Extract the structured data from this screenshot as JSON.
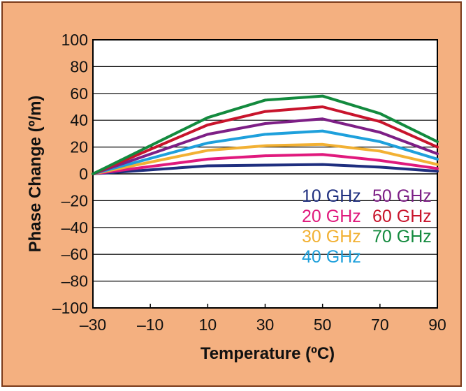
{
  "chart_data": {
    "type": "line",
    "xlabel": "Temperature (ºC)",
    "ylabel": "Phase Change (º/m)",
    "xlim": [
      -30,
      90
    ],
    "ylim": [
      -100,
      100
    ],
    "x_ticks": [
      "–30",
      "–10",
      "10",
      "30",
      "50",
      "70",
      "90"
    ],
    "x_tick_values": [
      -30,
      -10,
      10,
      30,
      50,
      70,
      90
    ],
    "y_ticks": [
      "100",
      "80",
      "60",
      "40",
      "20",
      "0",
      "–20",
      "–40",
      "–60",
      "–80",
      "–100"
    ],
    "y_tick_values": [
      100,
      80,
      60,
      40,
      20,
      0,
      -20,
      -40,
      -60,
      -80,
      -100
    ],
    "grid": "horizontal",
    "legend_placement": "center-right",
    "x": [
      -30,
      10,
      30,
      50,
      70,
      90
    ],
    "series": [
      {
        "name": "10 GHz",
        "color": "#1f2f7f",
        "values": [
          0,
          6,
          6.5,
          7,
          5,
          2
        ]
      },
      {
        "name": "20 GHz",
        "color": "#e0197d",
        "values": [
          0,
          11,
          13.5,
          14.5,
          10,
          4
        ]
      },
      {
        "name": "30 GHz",
        "color": "#f2b134",
        "values": [
          0,
          17.5,
          21,
          22,
          17,
          7
        ]
      },
      {
        "name": "40 GHz",
        "color": "#1ea0dc",
        "values": [
          0,
          23,
          29.5,
          32,
          24,
          11
        ]
      },
      {
        "name": "50 GHz",
        "color": "#7d1f86",
        "values": [
          0,
          29.5,
          37.5,
          41,
          31,
          15
        ]
      },
      {
        "name": "60 GHz",
        "color": "#c8142c",
        "values": [
          0,
          36.5,
          46.5,
          50,
          39,
          20
        ]
      },
      {
        "name": "70 GHz",
        "color": "#138a3e",
        "values": [
          0,
          42,
          55,
          58,
          45,
          24
        ]
      }
    ]
  }
}
